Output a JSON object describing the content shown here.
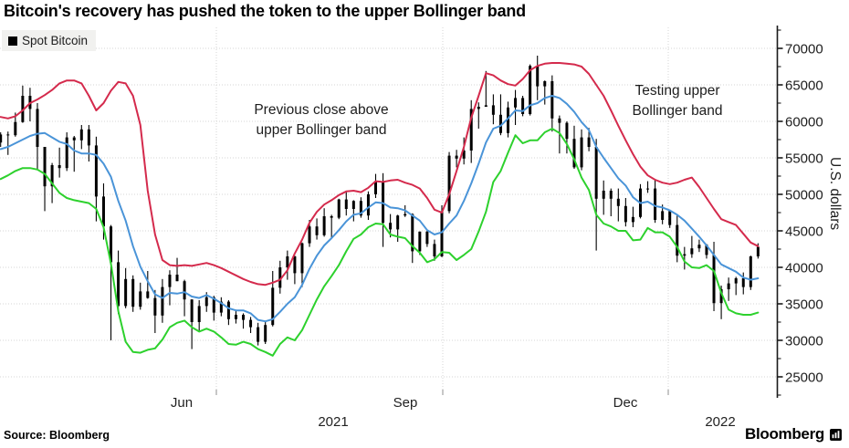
{
  "title": "Bitcoin's recovery has pushed the token to the upper Bollinger band",
  "legend": {
    "label": "Spot Bitcoin",
    "marker_color": "#000000"
  },
  "annotations": {
    "previous": {
      "line1": "Previous close above",
      "line2": "upper Bollinger band"
    },
    "testing": {
      "line1": "Testing upper",
      "line2": "Bollinger band"
    }
  },
  "source": "Source: Bloomberg",
  "brand": {
    "wordmark": "Bloomberg"
  },
  "y_axis": {
    "label": "U.S. dollars",
    "ticks": [
      70000,
      65000,
      60000,
      55000,
      50000,
      45000,
      40000,
      35000,
      30000,
      25000
    ],
    "minor_step": 2500
  },
  "x_axis": {
    "month_ticks": [
      {
        "label": "Jun",
        "x": 199
      },
      {
        "label": "Sep",
        "x": 444
      },
      {
        "label": "Dec",
        "x": 685
      }
    ],
    "year_ticks": [
      {
        "label": "2021",
        "x": 365
      },
      {
        "label": "2022",
        "x": 789
      }
    ],
    "gridlines_x": [
      237,
      485,
      732
    ]
  },
  "colors": {
    "upper_band": "#d42a4c",
    "middle_band": "#4a94d8",
    "lower_band": "#2dd12d",
    "candle": "#000000",
    "grid": "#d6d6d4",
    "axis": "#1a1a1a"
  },
  "chart_data": {
    "type": "candlestick",
    "title": "Bitcoin's recovery has pushed the token to the upper Bollinger band",
    "ylabel": "U.S. dollars",
    "ylim": [
      22500,
      72500
    ],
    "x_start_date": "2021-04-04",
    "x_step_days": 3,
    "x_axis_labels": [
      "Jun",
      "Sep",
      "Dec",
      "2021",
      "2022"
    ],
    "legend_position": "top-left",
    "grid": true,
    "series": [
      {
        "name": "Spot Bitcoin",
        "type": "candlestick",
        "color": "#000000",
        "ohlc": [
          [
            57100,
            58500,
            56500,
            58200
          ],
          [
            58200,
            58600,
            55400,
            58100
          ],
          [
            58100,
            61200,
            57900,
            59900
          ],
          [
            59900,
            64900,
            59800,
            63500
          ],
          [
            63500,
            64600,
            60000,
            61700
          ],
          [
            61700,
            62500,
            53300,
            56500
          ],
          [
            56500,
            56500,
            47700,
            51100
          ],
          [
            51100,
            54300,
            48800,
            54000
          ],
          [
            54000,
            56400,
            52300,
            53600
          ],
          [
            53600,
            58500,
            53200,
            57800
          ],
          [
            57800,
            58000,
            53100,
            57400
          ],
          [
            57400,
            59500,
            56200,
            58900
          ],
          [
            58900,
            59500,
            54500,
            56700
          ],
          [
            56700,
            57900,
            46300,
            49700
          ],
          [
            49700,
            51500,
            43800,
            45600
          ],
          [
            45600,
            45800,
            30000,
            40700
          ],
          [
            40700,
            42300,
            33600,
            34700
          ],
          [
            34700,
            39900,
            34400,
            38400
          ],
          [
            38400,
            38900,
            33900,
            34600
          ],
          [
            34600,
            37900,
            34200,
            36700
          ],
          [
            36700,
            39500,
            35700,
            35800
          ],
          [
            35800,
            36900,
            31000,
            33400
          ],
          [
            33400,
            38400,
            32400,
            37300
          ],
          [
            37300,
            39600,
            34800,
            39000
          ],
          [
            39000,
            41300,
            38100,
            38100
          ],
          [
            38100,
            38300,
            33300,
            35600
          ],
          [
            35600,
            35600,
            28800,
            32500
          ],
          [
            32500,
            35500,
            31300,
            34700
          ],
          [
            34700,
            36600,
            33900,
            35900
          ],
          [
            35900,
            36100,
            32700,
            33800
          ],
          [
            33800,
            35900,
            33300,
            35300
          ],
          [
            35300,
            35500,
            32100,
            32900
          ],
          [
            32900,
            34200,
            32300,
            33500
          ],
          [
            33500,
            33700,
            31600,
            32800
          ],
          [
            32800,
            33200,
            31000,
            31800
          ],
          [
            31800,
            32400,
            29300,
            29800
          ],
          [
            29800,
            32600,
            29500,
            32100
          ],
          [
            32100,
            39500,
            31900,
            37200
          ],
          [
            37200,
            40900,
            36400,
            40000
          ],
          [
            40000,
            42300,
            38300,
            41500
          ],
          [
            41500,
            41600,
            37700,
            39200
          ],
          [
            39200,
            43400,
            37300,
            43300
          ],
          [
            43300,
            46500,
            42800,
            45600
          ],
          [
            45600,
            46700,
            43800,
            44400
          ],
          [
            44400,
            48100,
            44200,
            47000
          ],
          [
            47000,
            47200,
            44000,
            46800
          ],
          [
            46800,
            49400,
            46600,
            49300
          ],
          [
            49300,
            50500,
            47100,
            48000
          ],
          [
            48000,
            49200,
            46300,
            49100
          ],
          [
            49100,
            49600,
            46800,
            47100
          ],
          [
            47100,
            50400,
            46500,
            50000
          ],
          [
            50000,
            52800,
            49500,
            51800
          ],
          [
            51800,
            52900,
            42800,
            46100
          ],
          [
            46100,
            47300,
            44100,
            45200
          ],
          [
            45200,
            47200,
            43500,
            47100
          ],
          [
            47100,
            48500,
            46900,
            47300
          ],
          [
            47300,
            47400,
            40600,
            42200
          ],
          [
            42200,
            44900,
            41700,
            44900
          ],
          [
            44900,
            45100,
            42800,
            43200
          ],
          [
            43200,
            43800,
            40900,
            41500
          ],
          [
            41500,
            48500,
            41400,
            47700
          ],
          [
            47700,
            55800,
            47400,
            55300
          ],
          [
            55300,
            56100,
            53700,
            54900
          ],
          [
            54900,
            57800,
            54100,
            56000
          ],
          [
            56000,
            62900,
            54300,
            61700
          ],
          [
            61700,
            62600,
            59000,
            62000
          ],
          [
            62000,
            66900,
            62000,
            62200
          ],
          [
            62200,
            63700,
            59600,
            60900
          ],
          [
            60900,
            63700,
            58100,
            58400
          ],
          [
            58400,
            62700,
            57800,
            61900
          ],
          [
            61900,
            64300,
            59500,
            63200
          ],
          [
            63200,
            63500,
            60700,
            61000
          ],
          [
            61000,
            67800,
            60800,
            67600
          ],
          [
            67600,
            69000,
            62900,
            64800
          ],
          [
            64800,
            65600,
            62300,
            65500
          ],
          [
            65500,
            66300,
            58600,
            60400
          ],
          [
            60400,
            60800,
            55600,
            59800
          ],
          [
            59800,
            60000,
            55600,
            57600
          ],
          [
            57600,
            59400,
            53500,
            53700
          ],
          [
            53700,
            58900,
            53300,
            57800
          ],
          [
            57800,
            59100,
            55900,
            56500
          ],
          [
            56500,
            57600,
            42300,
            49400
          ],
          [
            49400,
            51900,
            47200,
            50500
          ],
          [
            50500,
            50800,
            47000,
            49400
          ],
          [
            49400,
            50800,
            46300,
            48400
          ],
          [
            48400,
            49500,
            45600,
            46200
          ],
          [
            46200,
            48300,
            45500,
            46900
          ],
          [
            46900,
            51400,
            46700,
            50800
          ],
          [
            50800,
            51800,
            50200,
            50800
          ],
          [
            50800,
            52100,
            46100,
            46500
          ],
          [
            46500,
            48600,
            45900,
            47700
          ],
          [
            47700,
            47900,
            45400,
            45800
          ],
          [
            45800,
            47100,
            40700,
            41600
          ],
          [
            41600,
            42800,
            39700,
            41800
          ],
          [
            41800,
            44300,
            41300,
            42600
          ],
          [
            42600,
            43800,
            42100,
            43100
          ],
          [
            43100,
            43200,
            41200,
            41700
          ],
          [
            41700,
            43500,
            34000,
            35100
          ],
          [
            35100,
            37500,
            32900,
            37000
          ],
          [
            37000,
            38600,
            35400,
            37800
          ],
          [
            37800,
            38700,
            36200,
            38500
          ],
          [
            38500,
            39300,
            36300,
            37300
          ],
          [
            37300,
            41600,
            36900,
            41500
          ],
          [
            41500,
            43300,
            41200,
            42800
          ]
        ]
      },
      {
        "name": "Upper Bollinger band",
        "type": "line",
        "color": "#d42a4c",
        "values": [
          60600,
          60400,
          60700,
          61500,
          62500,
          63000,
          63600,
          64300,
          65200,
          65600,
          65600,
          65200,
          63500,
          61500,
          62500,
          64200,
          65400,
          65200,
          63500,
          59500,
          50500,
          44500,
          41000,
          40300,
          40200,
          40300,
          40200,
          40400,
          40600,
          40300,
          39900,
          39400,
          38900,
          38400,
          38000,
          37700,
          37600,
          37900,
          38300,
          39600,
          41900,
          43800,
          46100,
          47600,
          48600,
          49200,
          49900,
          50400,
          50500,
          50300,
          50900,
          51800,
          51700,
          51900,
          52000,
          51600,
          51300,
          50800,
          49500,
          47900,
          47500,
          50000,
          53200,
          56500,
          60500,
          63500,
          66600,
          66300,
          65600,
          65100,
          64900,
          65800,
          67000,
          67600,
          67900,
          68000,
          68000,
          67900,
          67800,
          67500,
          66500,
          65000,
          63500,
          61500,
          59400,
          57400,
          55500,
          53800,
          52600,
          52000,
          51600,
          51400,
          51600,
          52000,
          52300,
          51000,
          49500,
          48000,
          46600,
          46200,
          45800,
          44600,
          43400,
          42900
        ]
      },
      {
        "name": "Middle band (20-day moving average)",
        "type": "line",
        "color": "#4a94d8",
        "values": [
          56200,
          56500,
          57000,
          57500,
          58000,
          58300,
          58400,
          57800,
          57200,
          56900,
          56000,
          55600,
          55600,
          55400,
          54200,
          52400,
          49100,
          46400,
          42900,
          40100,
          38100,
          36300,
          35800,
          36500,
          36400,
          36600,
          36000,
          35800,
          36200,
          35700,
          35100,
          34400,
          34100,
          34100,
          33700,
          32800,
          32600,
          32900,
          33900,
          35000,
          35900,
          37600,
          39800,
          41600,
          43000,
          44000,
          45100,
          46300,
          47200,
          47400,
          48200,
          48900,
          48800,
          48200,
          48100,
          47800,
          47100,
          46400,
          45100,
          44500,
          44800,
          46000,
          47100,
          49100,
          51500,
          54200,
          57100,
          59000,
          59400,
          60400,
          61500,
          61400,
          62200,
          62500,
          63200,
          63500,
          63200,
          62400,
          61300,
          59900,
          58800,
          56500,
          55000,
          53600,
          52200,
          51200,
          49600,
          48800,
          49000,
          48400,
          48200,
          47800,
          47200,
          46400,
          45300,
          44200,
          43000,
          41700,
          40400,
          39900,
          39400,
          38600,
          38300,
          38500
        ]
      },
      {
        "name": "Lower Bollinger band",
        "type": "line",
        "color": "#2dd12d",
        "values": [
          52100,
          52600,
          53200,
          53600,
          53600,
          53400,
          52800,
          51500,
          50200,
          49500,
          49200,
          49000,
          48800,
          48000,
          45500,
          40500,
          34000,
          29800,
          28400,
          28300,
          28700,
          28900,
          30100,
          31800,
          32400,
          32700,
          31800,
          31200,
          31600,
          31200,
          30400,
          29500,
          29400,
          29800,
          29500,
          28800,
          28400,
          27900,
          29500,
          30400,
          30000,
          31400,
          33500,
          35600,
          37400,
          38800,
          40300,
          42200,
          43900,
          44500,
          45500,
          46000,
          45900,
          44500,
          44200,
          44000,
          42900,
          42000,
          40700,
          41100,
          42100,
          42000,
          41000,
          41700,
          42500,
          44900,
          47600,
          51700,
          53200,
          55700,
          58100,
          57000,
          57400,
          57400,
          58500,
          59000,
          58400,
          56900,
          54800,
          52300,
          50600,
          47200,
          46000,
          45600,
          45000,
          45000,
          43700,
          43800,
          45400,
          44800,
          44800,
          44200,
          42800,
          40800,
          40000,
          39900,
          40300,
          39500,
          36500,
          34200,
          33700,
          33500,
          33500,
          33800
        ]
      }
    ]
  }
}
